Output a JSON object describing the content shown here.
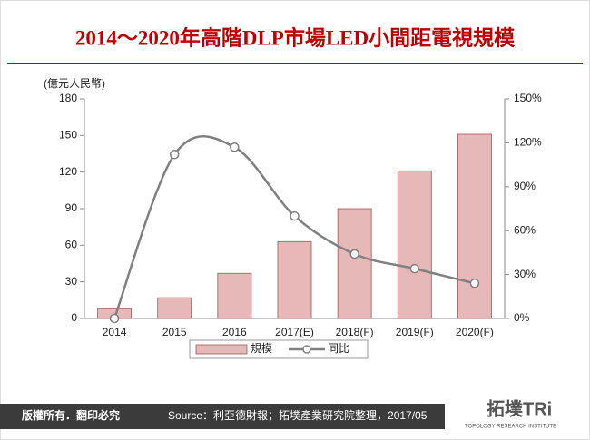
{
  "chart_data": {
    "type": "bar",
    "title": "2014～2020年高階DLP市場LED小間距電視規模",
    "y_label": "(億元人民幣)",
    "categories": [
      "2014",
      "2015",
      "2016",
      "2017(E)",
      "2018(F)",
      "2019(F)",
      "2020(F)"
    ],
    "series": [
      {
        "name": "規模",
        "type": "bar",
        "color": "#e6b8b7",
        "values": [
          8,
          17,
          37,
          63,
          90,
          121,
          151
        ]
      },
      {
        "name": "同比",
        "type": "line",
        "axis": "y2",
        "color": "#808080",
        "values": [
          0,
          112,
          117,
          70,
          44,
          34,
          24
        ]
      }
    ],
    "ylim": [
      0,
      180
    ],
    "yticks": [
      0,
      30,
      60,
      90,
      120,
      150,
      180
    ],
    "y2lim": [
      0,
      150
    ],
    "y2ticks": [
      {
        "value": 0,
        "label": "0%"
      },
      {
        "value": 30,
        "label": "30%"
      },
      {
        "value": 60,
        "label": "60%"
      },
      {
        "value": 90,
        "label": "90%"
      },
      {
        "value": 120,
        "label": "120%"
      },
      {
        "value": 150,
        "label": "150%"
      }
    ],
    "legend": "bottom"
  },
  "footer": {
    "rights": "版權所有．翻印必究",
    "source": "Source：利亞德財報；拓墣產業研究院整理，2017/05",
    "logo": "拓墣TRi",
    "logo_sub": "TOPOLOGY RESEARCH INSTITUTE"
  }
}
